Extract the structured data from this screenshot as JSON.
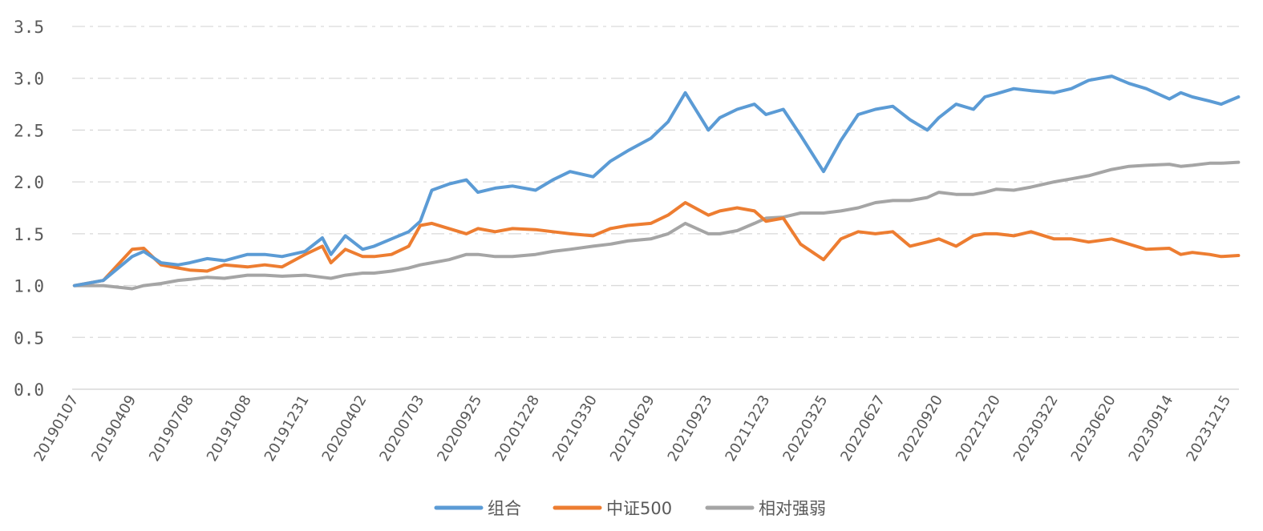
{
  "chart_data": {
    "type": "line",
    "title": "",
    "xlabel": "",
    "ylabel": "",
    "ylim": [
      0,
      3.5
    ],
    "y_ticks": [
      "0.0",
      "0.5",
      "1.0",
      "1.5",
      "2.0",
      "2.5",
      "3.0",
      "3.5"
    ],
    "grid": true,
    "legend_position": "bottom",
    "categories": [
      "20190107",
      "20190409",
      "20190708",
      "20191008",
      "20191231",
      "20200402",
      "20200703",
      "20200925",
      "20201228",
      "20210330",
      "20210629",
      "20210923",
      "20211223",
      "20220325",
      "20220627",
      "20220920",
      "20221220",
      "20230322",
      "20230620",
      "20230914",
      "20231215"
    ],
    "x": [
      0,
      0.5,
      1,
      1.2,
      1.5,
      1.8,
      2,
      2.3,
      2.6,
      3,
      3.3,
      3.6,
      4,
      4.3,
      4.45,
      4.7,
      5,
      5.2,
      5.5,
      5.8,
      6,
      6.2,
      6.5,
      6.8,
      7,
      7.3,
      7.6,
      8,
      8.3,
      8.6,
      9,
      9.3,
      9.6,
      10,
      10.3,
      10.6,
      11,
      11.2,
      11.5,
      11.8,
      12,
      12.3,
      12.6,
      13,
      13.3,
      13.6,
      13.9,
      14.2,
      14.5,
      14.8,
      15,
      15.3,
      15.6,
      15.8,
      16,
      16.3,
      16.6,
      17,
      17.3,
      17.6,
      18,
      18.3,
      18.6,
      19,
      19.2,
      19.4,
      19.7,
      19.9,
      20.2
    ],
    "series": [
      {
        "name": "组合",
        "color": "#5b9bd5",
        "values": [
          1.0,
          1.05,
          1.28,
          1.33,
          1.22,
          1.2,
          1.22,
          1.26,
          1.24,
          1.3,
          1.3,
          1.28,
          1.33,
          1.46,
          1.3,
          1.48,
          1.35,
          1.38,
          1.45,
          1.52,
          1.62,
          1.92,
          1.98,
          2.02,
          1.9,
          1.94,
          1.96,
          1.92,
          2.02,
          2.1,
          2.05,
          2.2,
          2.3,
          2.42,
          2.58,
          2.86,
          2.5,
          2.62,
          2.7,
          2.75,
          2.65,
          2.7,
          2.45,
          2.1,
          2.4,
          2.65,
          2.7,
          2.73,
          2.6,
          2.5,
          2.62,
          2.75,
          2.7,
          2.82,
          2.85,
          2.9,
          2.88,
          2.86,
          2.9,
          2.98,
          3.02,
          2.95,
          2.9,
          2.8,
          2.86,
          2.82,
          2.78,
          2.75,
          2.82
        ]
      },
      {
        "name": "中证500",
        "color": "#ed7d31",
        "values": [
          1.0,
          1.05,
          1.35,
          1.36,
          1.2,
          1.17,
          1.15,
          1.14,
          1.2,
          1.18,
          1.2,
          1.18,
          1.3,
          1.38,
          1.22,
          1.35,
          1.28,
          1.28,
          1.3,
          1.38,
          1.58,
          1.6,
          1.55,
          1.5,
          1.55,
          1.52,
          1.55,
          1.54,
          1.52,
          1.5,
          1.48,
          1.55,
          1.58,
          1.6,
          1.68,
          1.8,
          1.68,
          1.72,
          1.75,
          1.72,
          1.62,
          1.65,
          1.4,
          1.25,
          1.45,
          1.52,
          1.5,
          1.52,
          1.38,
          1.42,
          1.45,
          1.38,
          1.48,
          1.5,
          1.5,
          1.48,
          1.52,
          1.45,
          1.45,
          1.42,
          1.45,
          1.4,
          1.35,
          1.36,
          1.3,
          1.32,
          1.3,
          1.28,
          1.29
        ]
      },
      {
        "name": "相对强弱",
        "color": "#a5a5a5",
        "values": [
          1.0,
          1.0,
          0.97,
          1.0,
          1.02,
          1.05,
          1.06,
          1.08,
          1.07,
          1.1,
          1.1,
          1.09,
          1.1,
          1.08,
          1.07,
          1.1,
          1.12,
          1.12,
          1.14,
          1.17,
          1.2,
          1.22,
          1.25,
          1.3,
          1.3,
          1.28,
          1.28,
          1.3,
          1.33,
          1.35,
          1.38,
          1.4,
          1.43,
          1.45,
          1.5,
          1.6,
          1.5,
          1.5,
          1.53,
          1.6,
          1.65,
          1.66,
          1.7,
          1.7,
          1.72,
          1.75,
          1.8,
          1.82,
          1.82,
          1.85,
          1.9,
          1.88,
          1.88,
          1.9,
          1.93,
          1.92,
          1.95,
          2.0,
          2.03,
          2.06,
          2.12,
          2.15,
          2.16,
          2.17,
          2.15,
          2.16,
          2.18,
          2.18,
          2.19
        ]
      }
    ]
  }
}
